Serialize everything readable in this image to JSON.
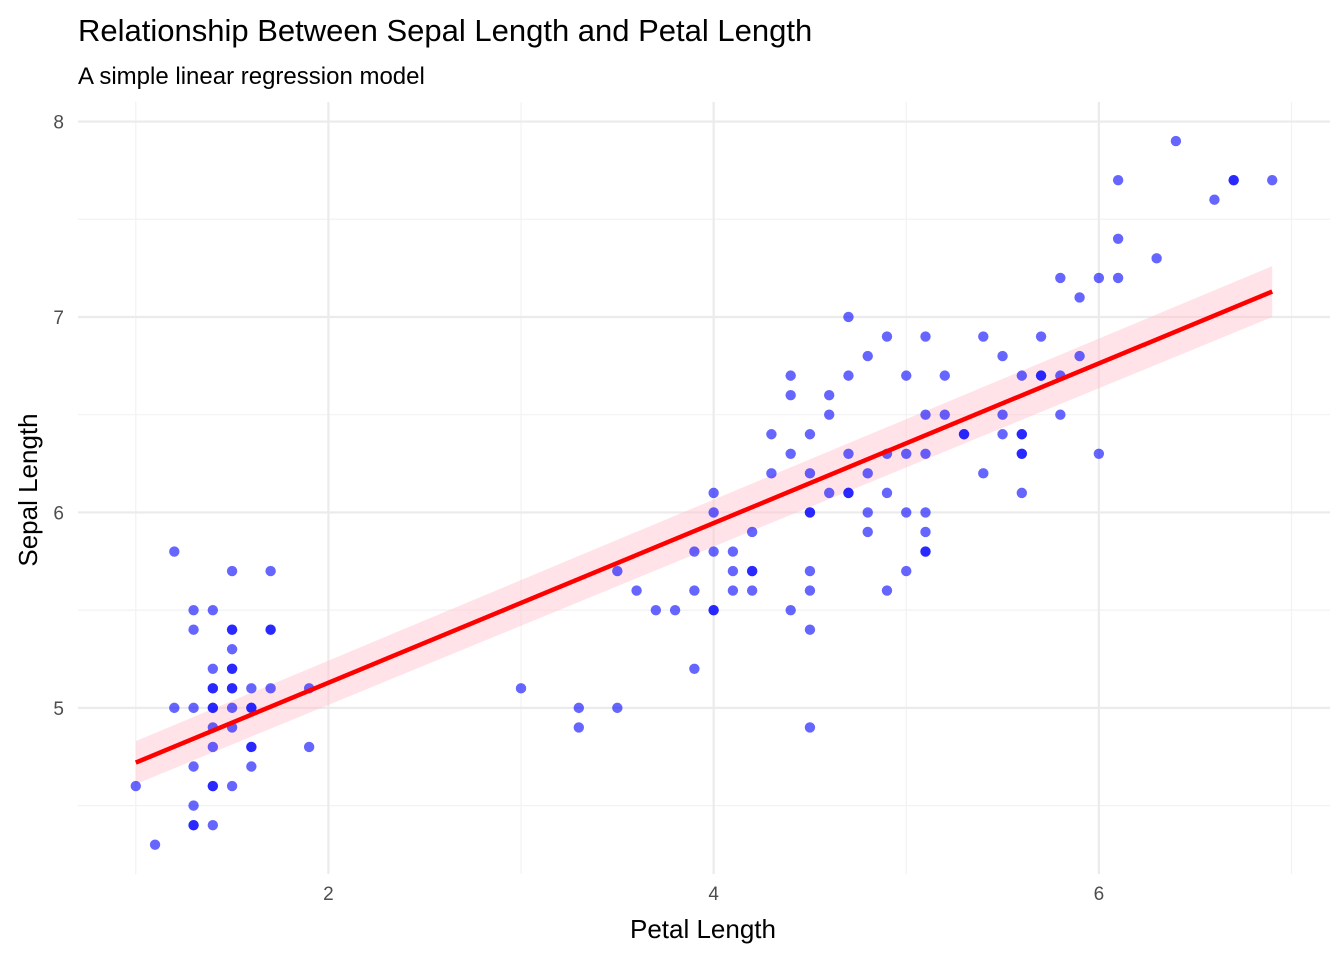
{
  "chart_data": {
    "type": "scatter",
    "title": "Relationship Between Sepal Length and Petal Length",
    "subtitle": "A simple linear regression model",
    "xlabel": "Petal Length",
    "ylabel": "Sepal Length",
    "xlim": [
      0.7,
      7.2
    ],
    "ylim": [
      4.15,
      8.1
    ],
    "x_ticks": [
      2,
      4,
      6
    ],
    "y_ticks": [
      5,
      6,
      7,
      8
    ],
    "grid": true,
    "point_color": "#0000ff",
    "line_color": "#ff0000",
    "band_color": "#ffc0cb",
    "regression": {
      "x": [
        1.0,
        6.9
      ],
      "y": [
        4.72,
        7.13
      ],
      "ci_lower": [
        4.61,
        7.0
      ],
      "ci_upper": [
        4.83,
        7.26
      ]
    },
    "points": [
      [
        1.0,
        4.6
      ],
      [
        1.1,
        4.3
      ],
      [
        1.2,
        5.8
      ],
      [
        1.2,
        5.0
      ],
      [
        1.3,
        5.5
      ],
      [
        1.3,
        5.4
      ],
      [
        1.3,
        5.0
      ],
      [
        1.3,
        4.7
      ],
      [
        1.3,
        4.5
      ],
      [
        1.3,
        4.4
      ],
      [
        1.3,
        4.4
      ],
      [
        1.4,
        5.5
      ],
      [
        1.4,
        5.2
      ],
      [
        1.4,
        5.1
      ],
      [
        1.4,
        5.1
      ],
      [
        1.4,
        5.0
      ],
      [
        1.4,
        5.0
      ],
      [
        1.4,
        4.9
      ],
      [
        1.4,
        4.8
      ],
      [
        1.4,
        4.6
      ],
      [
        1.4,
        4.6
      ],
      [
        1.4,
        4.4
      ],
      [
        1.5,
        5.7
      ],
      [
        1.5,
        5.4
      ],
      [
        1.5,
        5.4
      ],
      [
        1.5,
        5.3
      ],
      [
        1.5,
        5.2
      ],
      [
        1.5,
        5.2
      ],
      [
        1.5,
        5.1
      ],
      [
        1.5,
        5.1
      ],
      [
        1.5,
        5.0
      ],
      [
        1.5,
        4.9
      ],
      [
        1.5,
        4.6
      ],
      [
        1.6,
        5.1
      ],
      [
        1.6,
        5.0
      ],
      [
        1.6,
        5.0
      ],
      [
        1.6,
        4.8
      ],
      [
        1.6,
        4.8
      ],
      [
        1.6,
        4.7
      ],
      [
        1.7,
        5.7
      ],
      [
        1.7,
        5.4
      ],
      [
        1.7,
        5.4
      ],
      [
        1.7,
        5.1
      ],
      [
        1.9,
        5.1
      ],
      [
        1.9,
        4.8
      ],
      [
        3.0,
        5.1
      ],
      [
        3.3,
        5.0
      ],
      [
        3.3,
        4.9
      ],
      [
        3.5,
        5.7
      ],
      [
        3.5,
        5.0
      ],
      [
        3.6,
        5.6
      ],
      [
        3.7,
        5.5
      ],
      [
        3.8,
        5.5
      ],
      [
        3.9,
        5.8
      ],
      [
        3.9,
        5.6
      ],
      [
        3.9,
        5.2
      ],
      [
        4.0,
        6.1
      ],
      [
        4.0,
        6.0
      ],
      [
        4.0,
        5.8
      ],
      [
        4.0,
        5.5
      ],
      [
        4.0,
        5.5
      ],
      [
        4.1,
        5.8
      ],
      [
        4.1,
        5.7
      ],
      [
        4.1,
        5.6
      ],
      [
        4.2,
        5.9
      ],
      [
        4.2,
        5.7
      ],
      [
        4.2,
        5.7
      ],
      [
        4.2,
        5.6
      ],
      [
        4.3,
        6.4
      ],
      [
        4.3,
        6.2
      ],
      [
        4.4,
        6.7
      ],
      [
        4.4,
        6.6
      ],
      [
        4.4,
        6.3
      ],
      [
        4.4,
        5.5
      ],
      [
        4.5,
        6.4
      ],
      [
        4.5,
        6.2
      ],
      [
        4.5,
        6.0
      ],
      [
        4.5,
        6.0
      ],
      [
        4.5,
        5.7
      ],
      [
        4.5,
        5.6
      ],
      [
        4.5,
        5.4
      ],
      [
        4.5,
        4.9
      ],
      [
        4.6,
        6.6
      ],
      [
        4.6,
        6.5
      ],
      [
        4.6,
        6.1
      ],
      [
        4.7,
        7.0
      ],
      [
        4.7,
        6.7
      ],
      [
        4.7,
        6.3
      ],
      [
        4.7,
        6.1
      ],
      [
        4.7,
        6.1
      ],
      [
        4.8,
        6.8
      ],
      [
        4.8,
        6.2
      ],
      [
        4.8,
        6.0
      ],
      [
        4.8,
        5.9
      ],
      [
        4.9,
        6.9
      ],
      [
        4.9,
        6.3
      ],
      [
        4.9,
        6.1
      ],
      [
        4.9,
        5.6
      ],
      [
        5.0,
        6.7
      ],
      [
        5.0,
        6.3
      ],
      [
        5.0,
        6.0
      ],
      [
        5.0,
        5.7
      ],
      [
        5.1,
        6.9
      ],
      [
        5.1,
        6.5
      ],
      [
        5.1,
        6.3
      ],
      [
        5.1,
        6.0
      ],
      [
        5.1,
        5.9
      ],
      [
        5.1,
        5.8
      ],
      [
        5.1,
        5.8
      ],
      [
        5.2,
        6.7
      ],
      [
        5.2,
        6.5
      ],
      [
        5.3,
        6.4
      ],
      [
        5.3,
        6.4
      ],
      [
        5.4,
        6.9
      ],
      [
        5.4,
        6.2
      ],
      [
        5.5,
        6.8
      ],
      [
        5.5,
        6.5
      ],
      [
        5.5,
        6.4
      ],
      [
        5.6,
        6.7
      ],
      [
        5.6,
        6.4
      ],
      [
        5.6,
        6.4
      ],
      [
        5.6,
        6.3
      ],
      [
        5.6,
        6.3
      ],
      [
        5.6,
        6.1
      ],
      [
        5.7,
        6.9
      ],
      [
        5.7,
        6.7
      ],
      [
        5.7,
        6.7
      ],
      [
        5.8,
        7.2
      ],
      [
        5.8,
        6.7
      ],
      [
        5.8,
        6.5
      ],
      [
        5.9,
        7.1
      ],
      [
        5.9,
        6.8
      ],
      [
        6.0,
        7.2
      ],
      [
        6.0,
        6.3
      ],
      [
        6.1,
        7.7
      ],
      [
        6.1,
        7.4
      ],
      [
        6.1,
        7.2
      ],
      [
        6.3,
        7.3
      ],
      [
        6.4,
        7.9
      ],
      [
        6.6,
        7.6
      ],
      [
        6.7,
        7.7
      ],
      [
        6.7,
        7.7
      ],
      [
        6.9,
        7.7
      ]
    ]
  }
}
